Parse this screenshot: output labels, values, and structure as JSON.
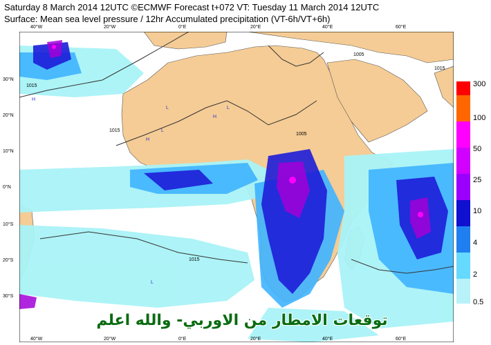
{
  "header": {
    "line1": "Saturday 8 March 2014 12UTC ©ECMWF Forecast t+072 VT: Tuesday 11 March 2014 12UTC",
    "line2": "Surface: Mean sea level pressure / 12hr Accumulated precipitation (VT-6h/VT+6h)"
  },
  "map": {
    "lat_labels": [
      "30°N",
      "20°N",
      "10°N",
      "0°N",
      "10°S",
      "20°S",
      "30°S"
    ],
    "lon_labels_top": [
      "40°W",
      "20°W",
      "0°E",
      "20°E",
      "40°E",
      "60°E"
    ],
    "lon_labels_bottom": [
      "40°W",
      "20°W",
      "0°E",
      "20°E",
      "40°E",
      "60°E"
    ],
    "isobar_labels": [
      "1015",
      "1015",
      "1005",
      "1005",
      "1015",
      "1015"
    ],
    "pressure_marks": [
      "H",
      "L",
      "L",
      "H",
      "L",
      "H",
      "L"
    ],
    "colors": {
      "ocean": "#ffffff",
      "land": "#f5cc95",
      "precip_light": "#a9f3f7",
      "precip_moderate": "#3fb4ff",
      "precip_heavy": "#1d1dd8",
      "precip_intense": "#a200d8",
      "precip_extreme": "#ff00ff"
    }
  },
  "colorbar": {
    "labels": [
      "300",
      "100",
      "50",
      "25",
      "10",
      "4",
      "2",
      "0.5"
    ],
    "colors": [
      "#ff0000",
      "#ff6600",
      "#ff00ff",
      "#d100ff",
      "#9b00ff",
      "#1010d0",
      "#1f7ff0",
      "#66d9ff",
      "#b8f2f8"
    ]
  },
  "caption": "توقعات الامطار من الاوربي- والله اعلم"
}
